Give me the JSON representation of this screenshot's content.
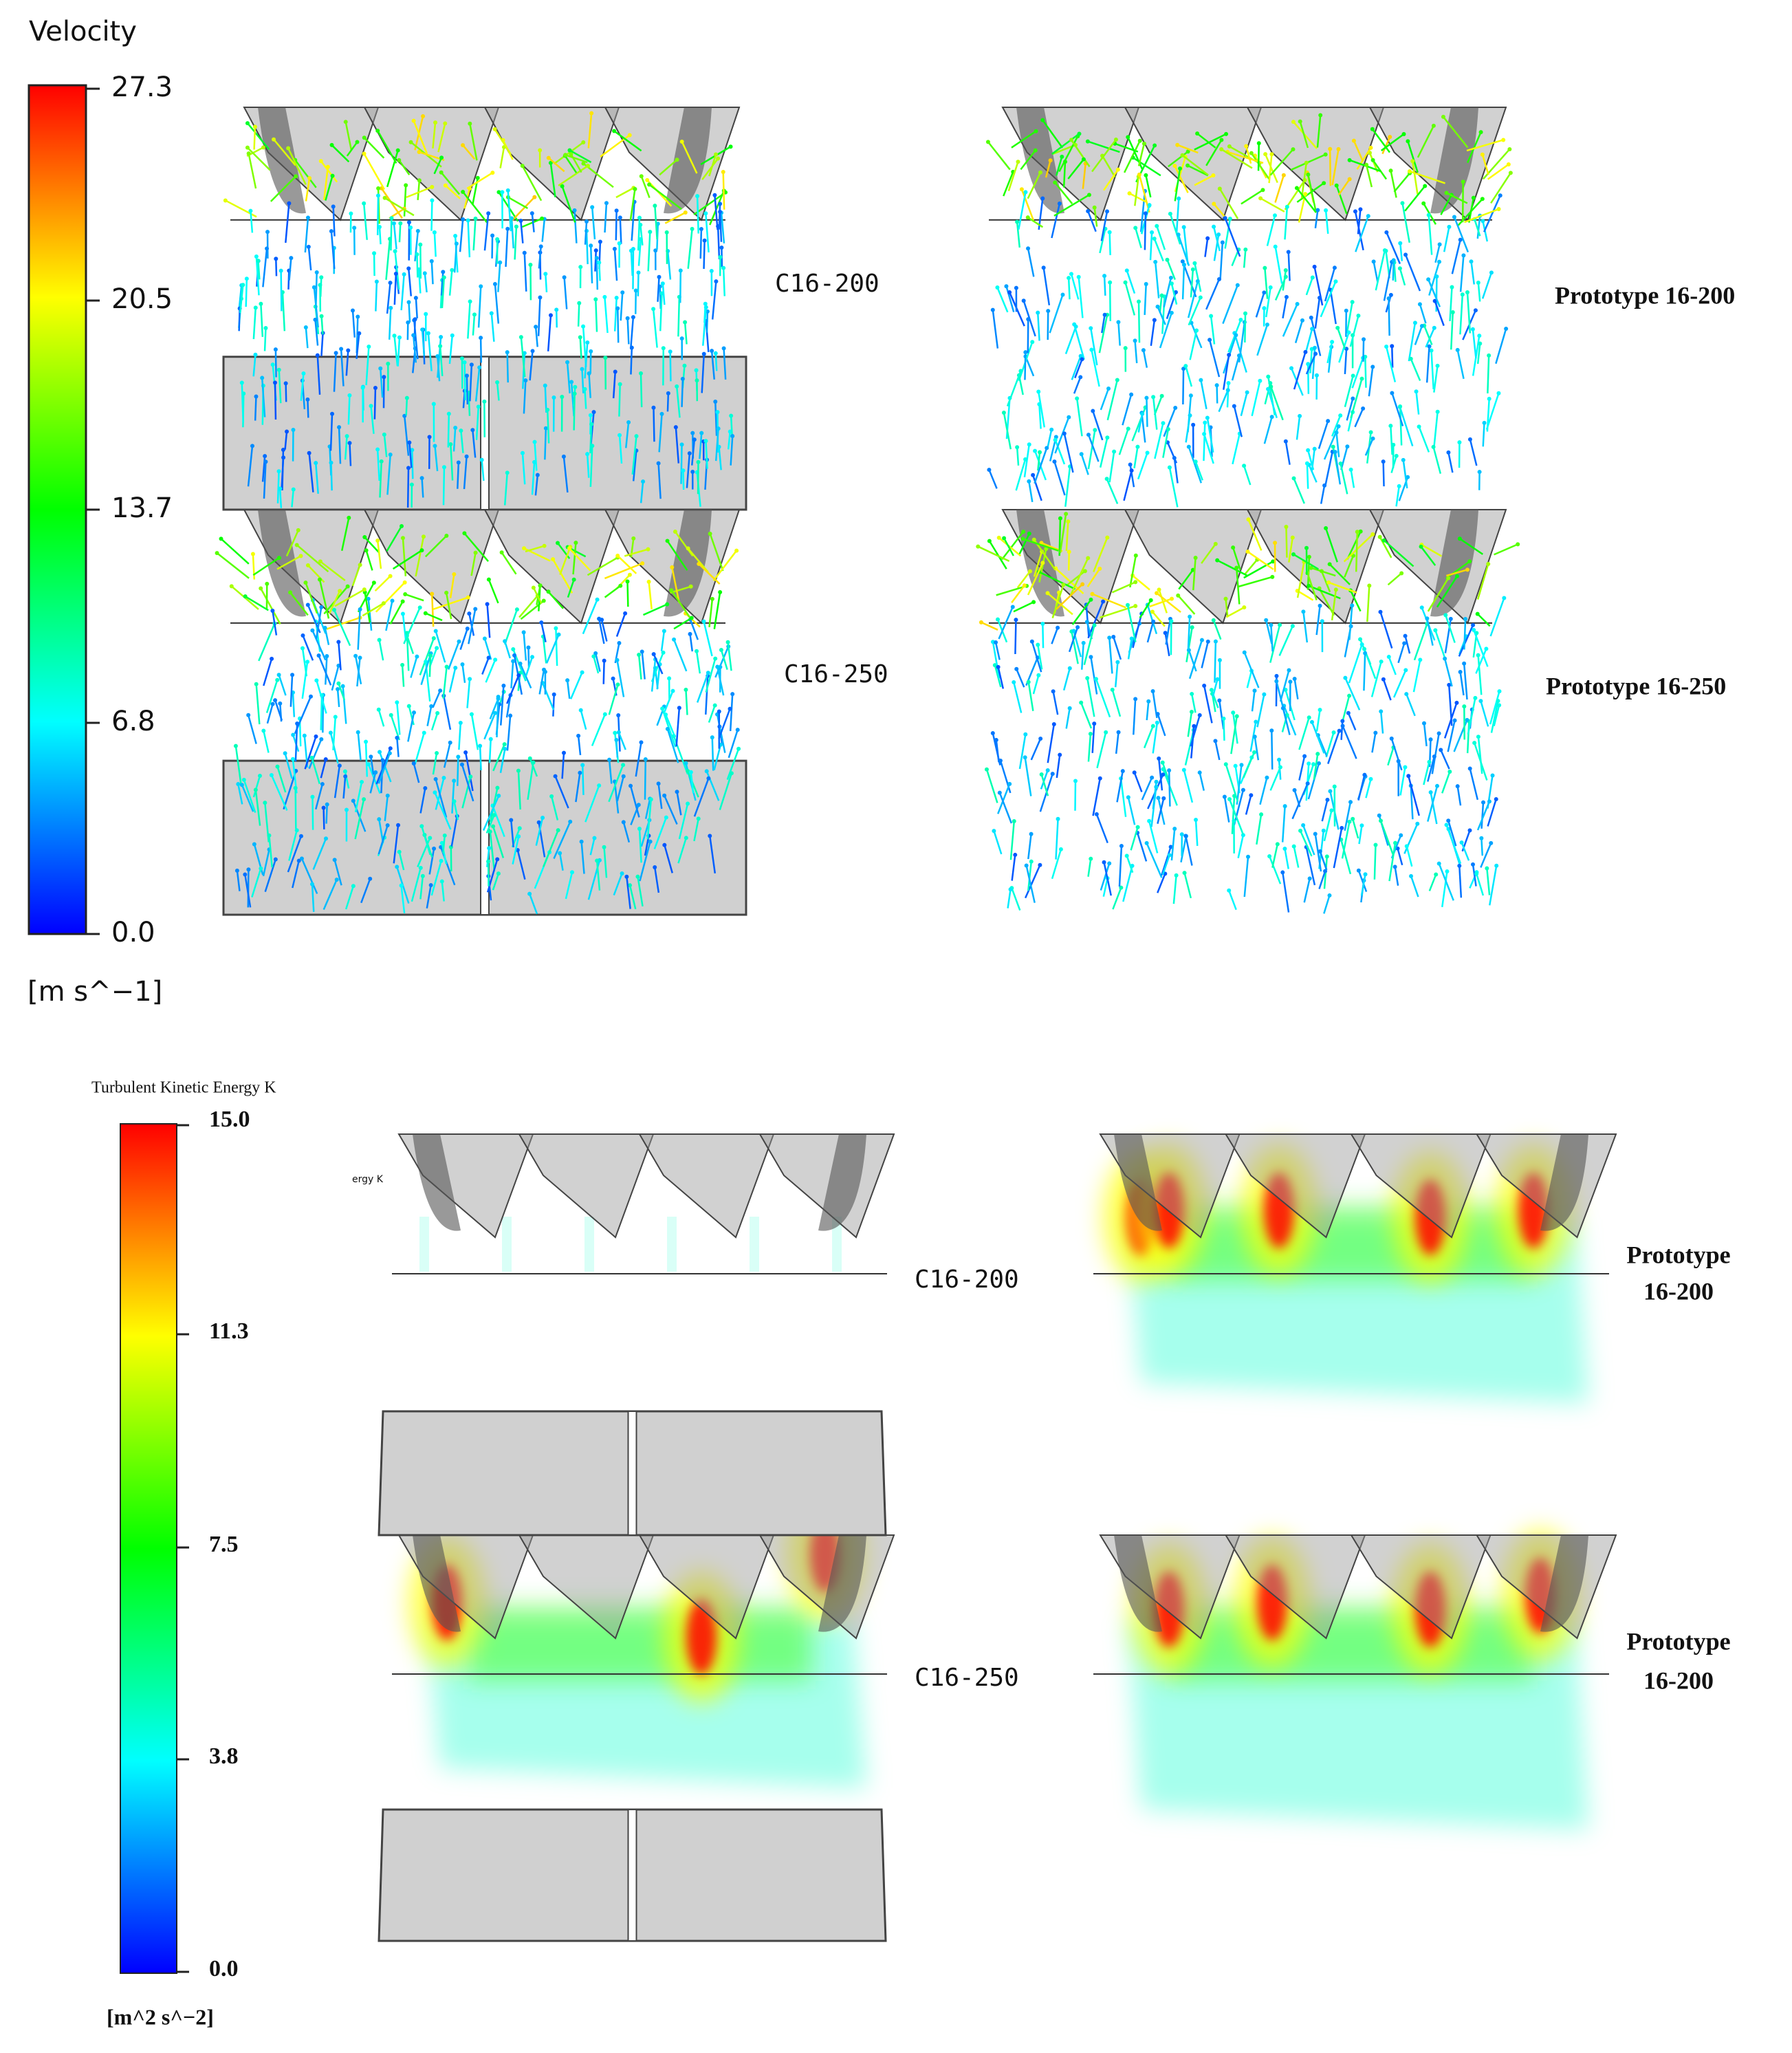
{
  "velocity_legend": {
    "title": "Velocity",
    "ticks": [
      "27.3",
      "20.5",
      "13.7",
      "6.8",
      "0.0"
    ],
    "unit": "[m s^−1]"
  },
  "velocity_panels": [
    {
      "label": "C16-200"
    },
    {
      "label": "Prototype 16-200"
    },
    {
      "label": "C16-250"
    },
    {
      "label": "Prototype 16-250"
    }
  ],
  "tke_legend": {
    "title": "Turbulent Kinetic Energy K",
    "ticks": [
      "15.0",
      "11.3",
      "7.5",
      "3.8",
      "0.0"
    ],
    "unit": "[m^2 s^−2]"
  },
  "tke_panels": [
    {
      "label": "C16-200",
      "stray_text": "ergy K"
    },
    {
      "label_lines": [
        "Prototype",
        "16-200"
      ]
    },
    {
      "label": "C16-250"
    },
    {
      "label_lines": [
        "Prototype",
        "16-200"
      ]
    }
  ]
}
